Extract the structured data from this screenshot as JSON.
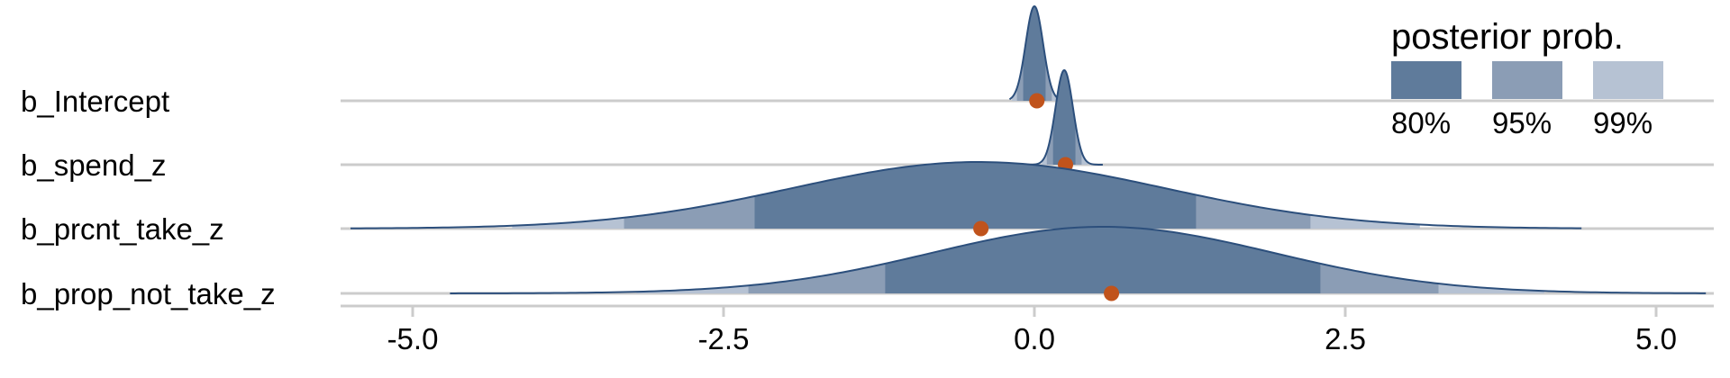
{
  "chart_data": {
    "type": "ridgeline",
    "xlim": [
      -5.5,
      5.4
    ],
    "x_ticks": [
      -5.0,
      -2.5,
      0.0,
      2.5,
      5.0
    ],
    "x_tick_labels": [
      "-5.0",
      "-2.5",
      "0.0",
      "2.5",
      "5.0"
    ],
    "categories": [
      "b_Intercept",
      "b_spend_z",
      "b_prcnt_take_z",
      "b_prop_not_take_z"
    ],
    "series": [
      {
        "name": "b_Intercept",
        "center": 0.0,
        "sd": 0.07,
        "support": [
          -0.2,
          0.2
        ],
        "point": 0.02,
        "interval_80": [
          -0.09,
          0.09
        ],
        "interval_95": [
          -0.14,
          0.14
        ],
        "interval_99": [
          -0.18,
          0.18
        ]
      },
      {
        "name": "b_spend_z",
        "center": 0.24,
        "sd": 0.07,
        "support": [
          -0.1,
          0.55
        ],
        "point": 0.25,
        "interval_80": [
          0.15,
          0.33
        ],
        "interval_95": [
          0.1,
          0.38
        ],
        "interval_99": [
          0.06,
          0.43
        ]
      },
      {
        "name": "b_prcnt_take_z",
        "center": -0.45,
        "sd": 1.5,
        "support": [
          -5.5,
          4.4
        ],
        "point": -0.43,
        "interval_80": [
          -2.25,
          1.3
        ],
        "interval_95": [
          -3.3,
          2.22
        ],
        "interval_99": [
          -4.2,
          3.1
        ]
      },
      {
        "name": "b_prop_not_take_z",
        "center": 0.55,
        "sd": 1.38,
        "support": [
          -4.7,
          5.4
        ],
        "point": 0.62,
        "interval_80": [
          -1.2,
          2.3
        ],
        "interval_95": [
          -2.3,
          3.25
        ],
        "interval_99": [
          -3.2,
          4.1
        ]
      }
    ],
    "legend": {
      "title": "posterior prob.",
      "position": "top-right",
      "entries": [
        {
          "label": "80%",
          "color": "#5f7b9b"
        },
        {
          "label": "95%",
          "color": "#8b9db5"
        },
        {
          "label": "99%",
          "color": "#b6c2d3"
        }
      ]
    },
    "colors": {
      "band_80": "#5f7b9b",
      "band_95": "#8b9db5",
      "band_99": "#b6c2d3",
      "outline": "#2c4f7c",
      "point": "#c0531c",
      "baseline": "#cccccc"
    },
    "grid": false
  }
}
